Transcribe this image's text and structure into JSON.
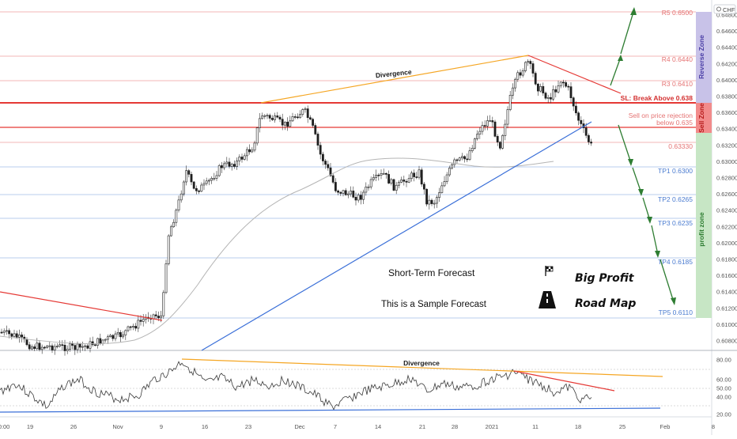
{
  "symbol_badge": "CHF",
  "price_axis": {
    "ticks": [
      "0.64800",
      "0.64600",
      "0.64400",
      "0.64200",
      "0.64000",
      "0.63800",
      "0.63600",
      "0.63400",
      "0.63200",
      "0.63000",
      "0.62800",
      "0.62600",
      "0.62400",
      "0.62200",
      "0.62000",
      "0.61800",
      "0.61600",
      "0.61400",
      "0.61200",
      "0.61000",
      "0.60800"
    ]
  },
  "time_axis": {
    "ticks": [
      "0:00",
      "19",
      "26",
      "Nov",
      "9",
      "16",
      "23",
      "Dec",
      "7",
      "14",
      "21",
      "28",
      "2021",
      "11",
      "18",
      "25",
      "Feb",
      "8"
    ]
  },
  "oscillator_axis": {
    "ticks": [
      "80.00",
      "60.00",
      "50.00",
      "40.00",
      "20.00"
    ]
  },
  "levels": {
    "r5": "R5 0.6500",
    "r4": "R4 0.6440",
    "r3": "R3 0.6410",
    "sl": "SL: Break Above 0.638",
    "sell_note_1": "Sell on price rejection",
    "sell_note_2": "below 0.635",
    "current": "0.63330",
    "tp1": "TP1 0.6300",
    "tp2": "TP2 0.6265",
    "tp3": "TP3 0.6235",
    "tp4": "TP4 0.6185",
    "tp5": "TP5 0.6110"
  },
  "zones": {
    "reverse": "Reverse Zone",
    "sell": "Sell Zone",
    "profit": "profit zone"
  },
  "annotations": {
    "divergence_main": "Divergence",
    "divergence_osc": "Divergence",
    "forecast_title": "Short-Term Forecast",
    "forecast_sub": "This is a Sample Forecast",
    "big_profit": "Big Profit",
    "road_map": "Road Map"
  },
  "icons": {
    "flag": "checkered-flag-icon",
    "road": "road-icon"
  },
  "colors": {
    "up_candle": "#1f1f1f",
    "down_candle": "#1f1f1f",
    "resistance_line": "#e53935",
    "support_line": "#3a6fd8",
    "divergence_line": "#f5a623",
    "forecast_arrow": "#2e7d32",
    "reverse_zone": "#c8c2e8",
    "sell_zone": "#f28b8b",
    "profit_zone": "#c7e6c5",
    "sl_line": "#e53935"
  }
}
